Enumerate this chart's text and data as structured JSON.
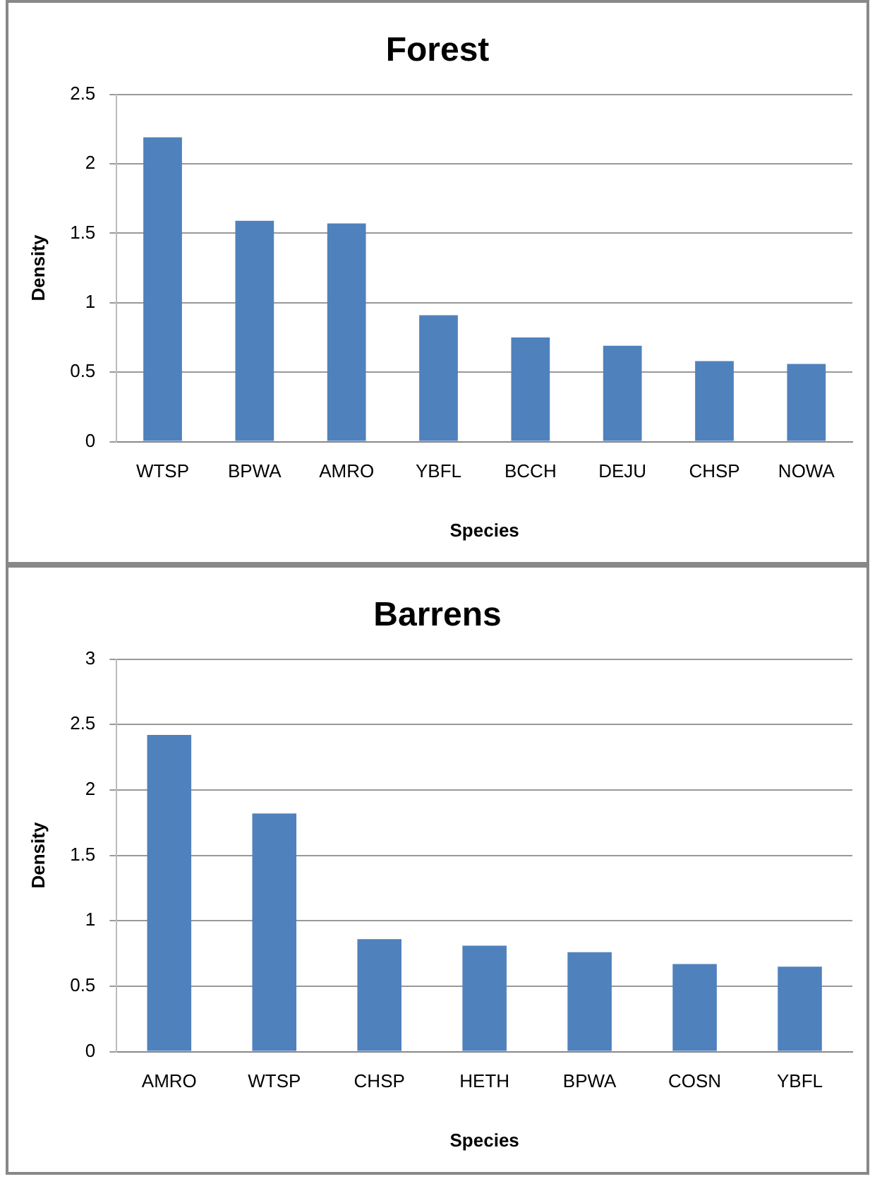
{
  "chart_data": [
    {
      "type": "bar",
      "title": "Forest",
      "xlabel": "Species",
      "ylabel": "Density",
      "categories": [
        "WTSP",
        "BPWA",
        "AMRO",
        "YBFL",
        "BCCH",
        "DEJU",
        "CHSP",
        "NOWA"
      ],
      "values": [
        2.19,
        1.59,
        1.57,
        0.91,
        0.75,
        0.69,
        0.58,
        0.56
      ],
      "color": "#4f81bd",
      "ylim": [
        0,
        2.5
      ],
      "yticks": [
        0,
        0.5,
        1,
        1.5,
        2,
        2.5
      ],
      "grid": "y"
    },
    {
      "type": "bar",
      "title": "Barrens",
      "xlabel": "Species",
      "ylabel": "Density",
      "categories": [
        "AMRO",
        "WTSP",
        "CHSP",
        "HETH",
        "BPWA",
        "COSN",
        "YBFL"
      ],
      "values": [
        2.42,
        1.82,
        0.86,
        0.81,
        0.76,
        0.67,
        0.65
      ],
      "color": "#4f81bd",
      "ylim": [
        0,
        3
      ],
      "yticks": [
        0,
        0.5,
        1,
        1.5,
        2,
        2.5,
        3
      ],
      "grid": "y"
    }
  ]
}
